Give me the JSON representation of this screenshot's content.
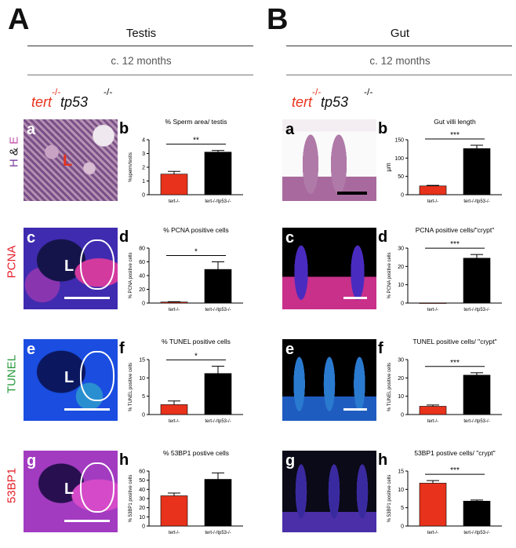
{
  "panelA": {
    "letter": "A",
    "title": "Testis",
    "age": "c. 12 months"
  },
  "panelB": {
    "letter": "B",
    "title": "Gut",
    "age": "c. 12 months"
  },
  "genotype": {
    "tert": "tert",
    "tert_sup": "-/-",
    "tp53": "tp53",
    "tp53_sup": "-/-"
  },
  "row_labels": {
    "he_h": "H",
    "he_amp": "&",
    "he_e": "E",
    "pcna": "PCNA",
    "tunel": "TUNEL",
    "bp1": "53BP1"
  },
  "image_letters": {
    "testis": [
      "a",
      "c",
      "e",
      "g"
    ],
    "gut": [
      "a",
      "c",
      "e",
      "g"
    ],
    "lumen": "L"
  },
  "colors": {
    "red": "#e8321c",
    "black": "#000000",
    "pcna": "#e4212b",
    "tunel": "#2a9a3c",
    "he": "#7b3f9e"
  },
  "chart_data": [
    {
      "id": "testis-sperm",
      "letter": "b",
      "type": "bar",
      "title": "% Sperm area/ testis",
      "ylabel": "%sperm/testis",
      "categories": [
        "tert-/-",
        "tert-/-/tp53-/-"
      ],
      "values": [
        1.5,
        3.1
      ],
      "errors": [
        0.2,
        0.12
      ],
      "ylim": [
        0,
        4
      ],
      "yticks": [
        0,
        1,
        2,
        3,
        4
      ],
      "sig": "**"
    },
    {
      "id": "gut-villi",
      "letter": "b",
      "type": "bar",
      "title": "Gut villi length",
      "ylabel": "µm",
      "categories": [
        "tert-/-",
        "tert-/-/tp53-/-"
      ],
      "values": [
        24,
        126
      ],
      "errors": [
        1.5,
        9
      ],
      "ylim": [
        0,
        150
      ],
      "yticks": [
        0,
        50,
        100,
        150
      ],
      "sig": "***"
    },
    {
      "id": "testis-pcna",
      "letter": "d",
      "type": "bar",
      "title": "% PCNA positive cells",
      "ylabel": "% PCNA positive cells",
      "categories": [
        "tert-/-",
        "tert-/-/tp53-/-"
      ],
      "values": [
        1.5,
        49
      ],
      "errors": [
        0.5,
        11
      ],
      "ylim": [
        0,
        80
      ],
      "yticks": [
        0,
        20,
        40,
        60,
        80
      ],
      "sig": "*"
    },
    {
      "id": "gut-pcna",
      "letter": "d",
      "type": "bar",
      "title": "PCNA positive cells/\"crypt\"",
      "ylabel": "% PCNA positive cells",
      "categories": [
        "tert-/-",
        "tert-/-/tp53-/-"
      ],
      "values": [
        0.1,
        24.5
      ],
      "errors": [
        0,
        2
      ],
      "ylim": [
        0,
        30
      ],
      "yticks": [
        0,
        10,
        20,
        30
      ],
      "sig": "***"
    },
    {
      "id": "testis-tunel",
      "letter": "f",
      "type": "bar",
      "title": "% TUNEL positive cells",
      "ylabel": "% TUNEL positive cells",
      "categories": [
        "tert-/-",
        "tert-/-/tp53-/-"
      ],
      "values": [
        2.7,
        11.2
      ],
      "errors": [
        1,
        2
      ],
      "ylim": [
        0,
        15
      ],
      "yticks": [
        0,
        5,
        10,
        15
      ],
      "sig": "*"
    },
    {
      "id": "gut-tunel",
      "letter": "f",
      "type": "bar",
      "title": "TUNEL positive cells/ \"crypt\"",
      "ylabel": "% TUNEL positive cells",
      "categories": [
        "tert-/-",
        "tert-/-/tp53-/-"
      ],
      "values": [
        4.5,
        21.5
      ],
      "errors": [
        0.7,
        1.3
      ],
      "ylim": [
        0,
        30
      ],
      "yticks": [
        0,
        10,
        20,
        30
      ],
      "sig": "***"
    },
    {
      "id": "testis-53bp1",
      "letter": "h",
      "type": "bar",
      "title": "% 53BP1 postive cells",
      "ylabel": "% 53BP1 positive cells",
      "categories": [
        "tert-/-",
        "tert-/-/tp53-/-"
      ],
      "values": [
        33,
        51
      ],
      "errors": [
        3,
        7
      ],
      "ylim": [
        0,
        60
      ],
      "yticks": [
        0,
        10,
        20,
        30,
        40,
        50,
        60
      ],
      "sig": ""
    },
    {
      "id": "gut-53bp1",
      "letter": "h",
      "type": "bar",
      "title": "53BP1 postive cells/ \"crypt\"",
      "ylabel": "% 53BP1 positive cells",
      "categories": [
        "tert-/-",
        "tert-/-/tp53-/-"
      ],
      "values": [
        11.7,
        6.8
      ],
      "errors": [
        0.7,
        0.3
      ],
      "ylim": [
        0,
        15
      ],
      "yticks": [
        0,
        5,
        10,
        15
      ],
      "sig": "***"
    }
  ]
}
